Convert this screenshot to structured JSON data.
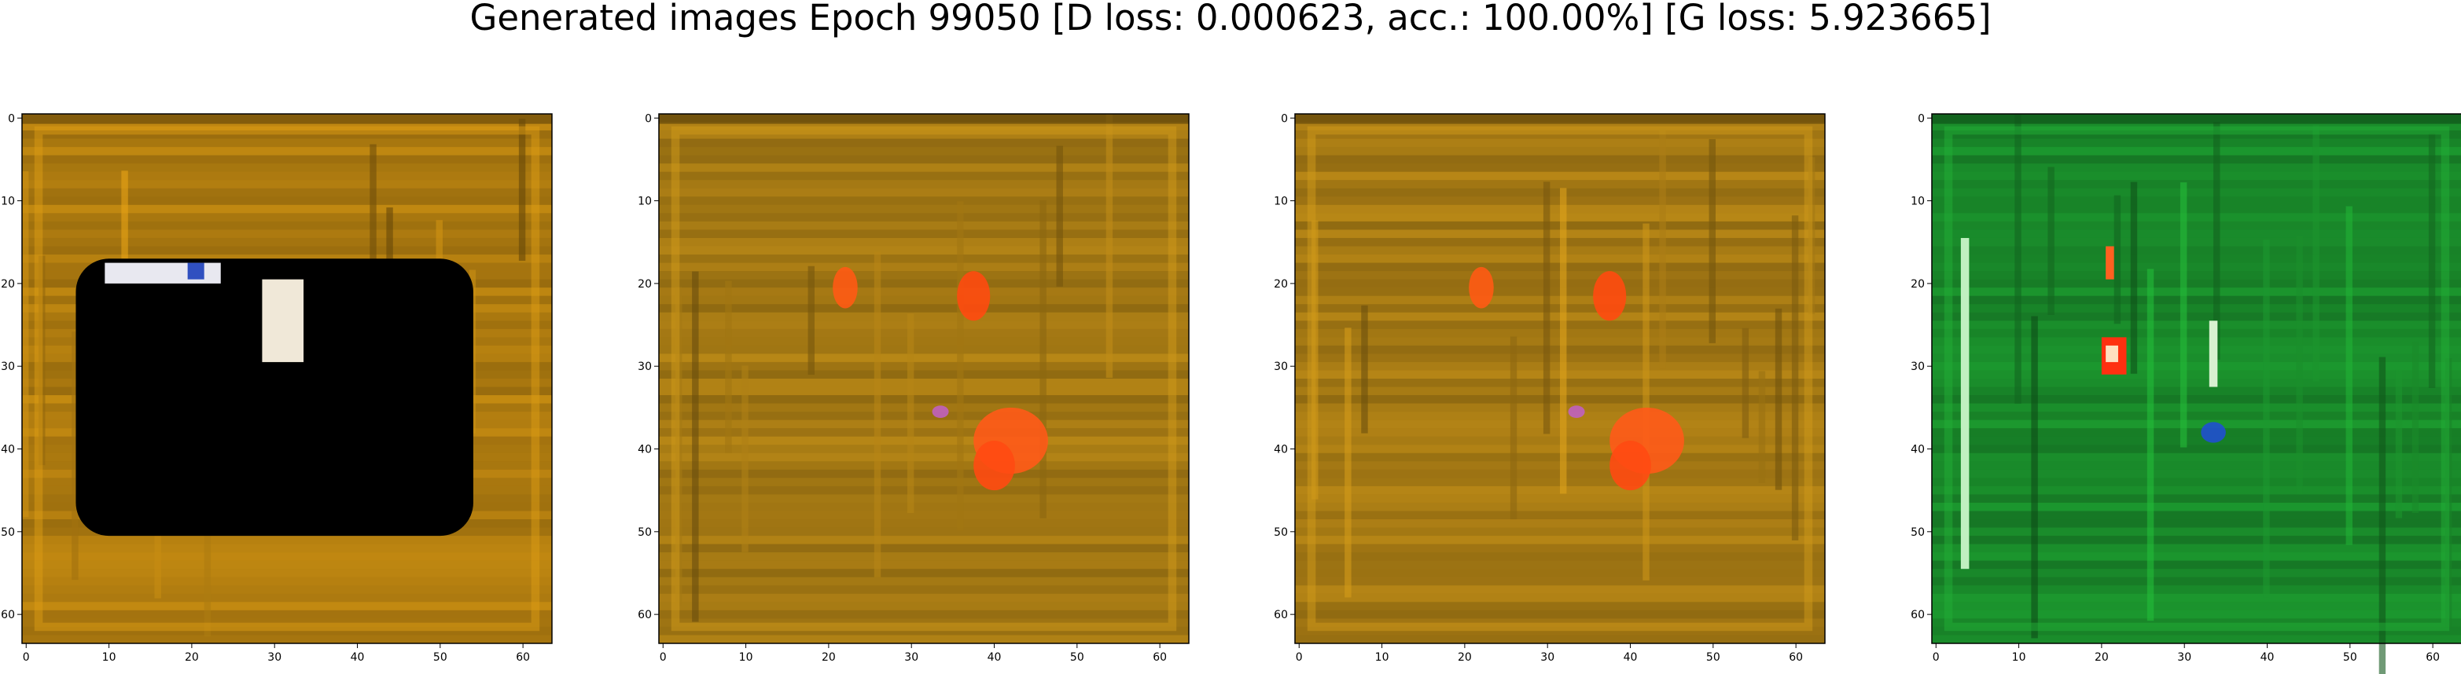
{
  "title": "Generated images Epoch 99050 [D loss: 0.000623, acc.: 100.00%] [G loss: 5.923665]",
  "axis": {
    "range": [
      0,
      64
    ],
    "x_ticks": [
      "0",
      "10",
      "20",
      "30",
      "40",
      "50",
      "60"
    ],
    "y_ticks": [
      "0",
      "10",
      "20",
      "30",
      "40",
      "50",
      "60"
    ]
  },
  "panels": [
    {
      "name": "generated-image-1",
      "base": "#b07c10",
      "description": "ochre texture with large black rectangle",
      "blobs": [
        {
          "shape": "rect",
          "x": 6.5,
          "y": 17.5,
          "w": 48,
          "h": 33.5,
          "r": 4,
          "color": "#000000"
        },
        {
          "shape": "rect",
          "x": 29,
          "y": 20,
          "w": 5,
          "h": 10,
          "r": 0,
          "color": "#f0e8d8"
        },
        {
          "shape": "rect",
          "x": 10,
          "y": 18,
          "w": 14,
          "h": 2.5,
          "r": 0,
          "color": "#e8e8f0"
        },
        {
          "shape": "rect",
          "x": 20,
          "y": 18,
          "w": 2,
          "h": 2,
          "r": 0,
          "color": "#3050c0"
        }
      ]
    },
    {
      "name": "generated-image-2",
      "base": "#a67a14",
      "description": "ochre texture with orange spots",
      "blobs": [
        {
          "shape": "ellipse",
          "x": 37.5,
          "y": 21.5,
          "w": 4,
          "h": 6,
          "r": 0,
          "color": "#ff4a10"
        },
        {
          "shape": "ellipse",
          "x": 22,
          "y": 20.5,
          "w": 3,
          "h": 5,
          "r": 0,
          "color": "#ff5a14"
        },
        {
          "shape": "ellipse",
          "x": 42,
          "y": 39,
          "w": 9,
          "h": 8,
          "r": 0,
          "color": "#ff5a18"
        },
        {
          "shape": "ellipse",
          "x": 40,
          "y": 42,
          "w": 5,
          "h": 6,
          "r": 0,
          "color": "#ff4a12"
        },
        {
          "shape": "ellipse",
          "x": 33.5,
          "y": 35.5,
          "w": 2,
          "h": 1.5,
          "r": 0,
          "color": "#c060c0"
        }
      ]
    },
    {
      "name": "generated-image-3",
      "base": "#a67a14",
      "description": "ochre texture with orange spots",
      "blobs": [
        {
          "shape": "ellipse",
          "x": 37.5,
          "y": 21.5,
          "w": 4,
          "h": 6,
          "r": 0,
          "color": "#ff4a10"
        },
        {
          "shape": "ellipse",
          "x": 22,
          "y": 20.5,
          "w": 3,
          "h": 5,
          "r": 0,
          "color": "#ff5a14"
        },
        {
          "shape": "ellipse",
          "x": 42,
          "y": 39,
          "w": 9,
          "h": 8,
          "r": 0,
          "color": "#ff5a18"
        },
        {
          "shape": "ellipse",
          "x": 40,
          "y": 42,
          "w": 5,
          "h": 6,
          "r": 0,
          "color": "#ff4a12"
        },
        {
          "shape": "ellipse",
          "x": 33.5,
          "y": 35.5,
          "w": 2,
          "h": 1.5,
          "r": 0,
          "color": "#c060c0"
        }
      ]
    },
    {
      "name": "generated-image-4",
      "base": "#1a8a2a",
      "description": "green texture with red and blue spots",
      "blobs": [
        {
          "shape": "rect",
          "x": 20.5,
          "y": 27,
          "w": 3,
          "h": 4.5,
          "r": 0,
          "color": "#ff3010"
        },
        {
          "shape": "rect",
          "x": 21,
          "y": 28,
          "w": 1.5,
          "h": 2,
          "r": 0,
          "color": "#ffe0c0"
        },
        {
          "shape": "ellipse",
          "x": 33.5,
          "y": 38,
          "w": 3,
          "h": 2.5,
          "r": 0,
          "color": "#2050d0"
        },
        {
          "shape": "rect",
          "x": 3.5,
          "y": 15,
          "w": 1,
          "h": 40,
          "r": 0,
          "color": "#c0f0c0"
        },
        {
          "shape": "rect",
          "x": 33.5,
          "y": 25,
          "w": 1,
          "h": 8,
          "r": 0,
          "color": "#d8f0d0"
        },
        {
          "shape": "rect",
          "x": 21,
          "y": 16,
          "w": 1,
          "h": 4,
          "r": 0,
          "color": "#ff6020"
        }
      ]
    }
  ]
}
